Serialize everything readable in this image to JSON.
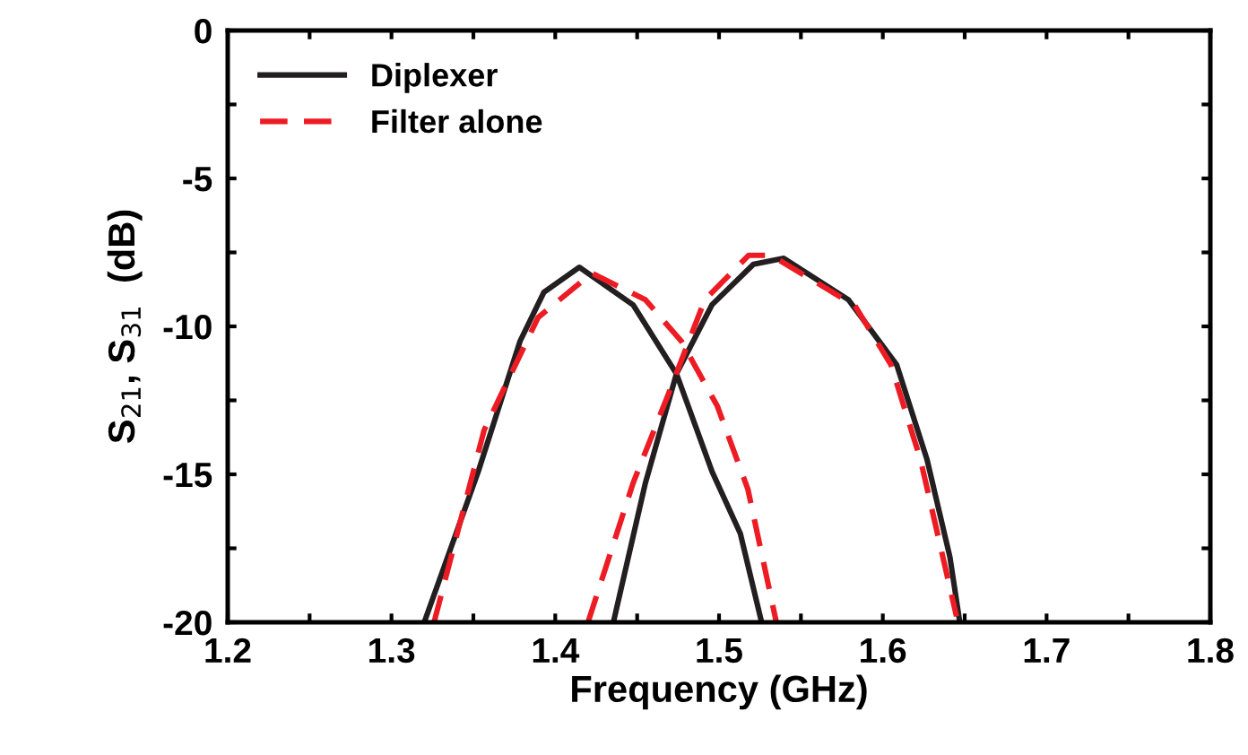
{
  "chart_data": {
    "type": "line",
    "xlabel": "Frequency (GHz)",
    "ylabel": "S$_{21}$, S$_{31}$  (dB)",
    "xlim": [
      1.2,
      1.8
    ],
    "ylim": [
      -20,
      0
    ],
    "xticks": [
      1.2,
      {
        "value": 1.25,
        "label": null
      },
      1.3,
      {
        "value": 1.35,
        "label": null
      },
      1.4,
      {
        "value": 1.45,
        "label": null
      },
      1.5,
      {
        "value": 1.55,
        "label": null
      },
      1.6,
      {
        "value": 1.65,
        "label": null
      },
      1.7,
      {
        "value": 1.75,
        "label": null
      },
      1.8
    ],
    "yticks": [
      -20,
      {
        "value": -17.5,
        "label": null
      },
      -15,
      {
        "value": -12.5,
        "label": null
      },
      -10,
      {
        "value": -7.5,
        "label": null
      },
      -5,
      {
        "value": -2.5,
        "label": null
      },
      0
    ],
    "grid": false,
    "legend": "top left",
    "series": [
      {
        "name": "Diplexer",
        "color": "#231f20",
        "line_style": "solid",
        "x": [
          1.32,
          1.353,
          1.3785,
          1.393,
          1.4147,
          1.4475,
          1.474,
          1.4957,
          1.513,
          1.526
        ],
        "values": [
          -20,
          -14.9,
          -10.5,
          -8.85,
          -8.0,
          -9.27,
          -11.6,
          -14.9,
          -17.0,
          -20
        ]
      },
      {
        "color": "#231f20",
        "line_style": "solid",
        "x": [
          1.4355,
          1.455,
          1.474,
          1.4957,
          1.521,
          1.5395,
          1.579,
          1.6085,
          1.627,
          1.641,
          1.647
        ],
        "values": [
          -20,
          -15.3,
          -11.6,
          -9.27,
          -7.9,
          -7.7,
          -9.1,
          -11.3,
          -14.5,
          -17.8,
          -20
        ]
      },
      {
        "name": "Filter alone",
        "color": "#ed1c24",
        "line_style": "dashed",
        "x": [
          1.326,
          1.3566,
          1.3895,
          1.4223,
          1.455,
          1.477,
          1.499,
          1.5176,
          1.535
        ],
        "values": [
          -20,
          -13.5,
          -9.7,
          -8.2,
          -9.1,
          -10.5,
          -12.7,
          -15.5,
          -20
        ]
      },
      {
        "color": "#ed1c24",
        "line_style": "dashed",
        "x": [
          1.42,
          1.4475,
          1.469,
          1.4913,
          1.518,
          1.532,
          1.583,
          1.605,
          1.623,
          1.645
        ],
        "values": [
          -20,
          -15.3,
          -12.3,
          -9.1,
          -7.6,
          -7.6,
          -9.3,
          -11.3,
          -14.5,
          -19.8
        ]
      }
    ]
  }
}
